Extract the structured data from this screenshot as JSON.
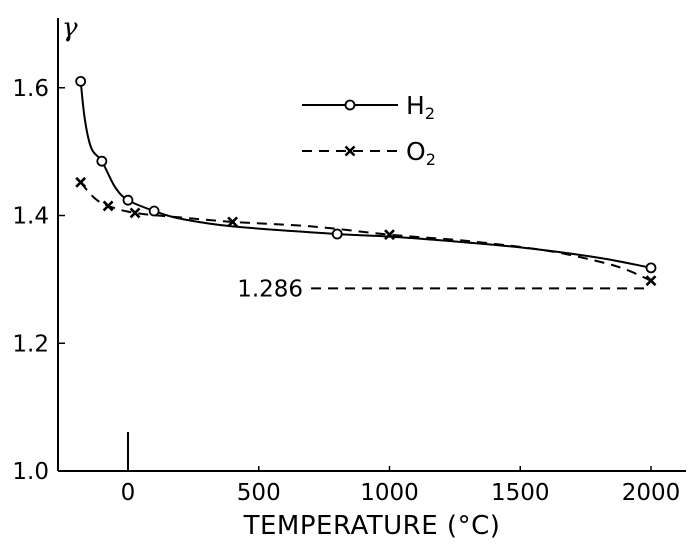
{
  "chart_data": {
    "type": "line",
    "xlabel": "TEMPERATURE (°C)",
    "ylabel": "γ",
    "xlim": [
      -250,
      2050
    ],
    "ylim": [
      1.0,
      1.7
    ],
    "x_ticks": [
      0,
      500,
      1000,
      1500,
      2000
    ],
    "x_tick_labels": [
      "0",
      "500",
      "1000",
      "1500",
      "2000"
    ],
    "y_ticks": [
      1.0,
      1.2,
      1.4,
      1.6
    ],
    "y_tick_labels": [
      "1.0",
      "1.2",
      "1.4",
      "1.6"
    ],
    "grid": false,
    "legend_position": "top-center",
    "series": [
      {
        "name": "H2",
        "legend_text": "H",
        "legend_sub": "2",
        "line_style": "solid",
        "marker": "circle",
        "points": [
          [
            -181,
            1.61
          ],
          [
            -100,
            1.485
          ],
          [
            0,
            1.424
          ],
          [
            100,
            1.407
          ],
          [
            800,
            1.371
          ],
          [
            2000,
            1.318
          ]
        ],
        "curve": [
          [
            -181,
            1.61
          ],
          [
            -165,
            1.55
          ],
          [
            -140,
            1.505
          ],
          [
            -100,
            1.485
          ],
          [
            -50,
            1.445
          ],
          [
            0,
            1.424
          ],
          [
            100,
            1.407
          ],
          [
            200,
            1.395
          ],
          [
            400,
            1.383
          ],
          [
            800,
            1.371
          ],
          [
            1000,
            1.367
          ],
          [
            1200,
            1.361
          ],
          [
            1500,
            1.35
          ],
          [
            1800,
            1.334
          ],
          [
            2000,
            1.318
          ]
        ]
      },
      {
        "name": "O2",
        "legend_text": "O",
        "legend_sub": "2",
        "line_style": "dashed",
        "marker": "x",
        "points": [
          [
            -181,
            1.452
          ],
          [
            -76,
            1.415
          ],
          [
            27,
            1.404
          ],
          [
            400,
            1.39
          ],
          [
            1000,
            1.37
          ],
          [
            2000,
            1.298
          ]
        ],
        "curve": [
          [
            -181,
            1.452
          ],
          [
            -130,
            1.428
          ],
          [
            -76,
            1.415
          ],
          [
            27,
            1.404
          ],
          [
            200,
            1.397
          ],
          [
            400,
            1.39
          ],
          [
            700,
            1.383
          ],
          [
            1000,
            1.37
          ],
          [
            1300,
            1.36
          ],
          [
            1600,
            1.345
          ],
          [
            1800,
            1.328
          ],
          [
            1900,
            1.316
          ],
          [
            2000,
            1.298
          ]
        ]
      }
    ],
    "reference_line": {
      "value": 1.286,
      "label": "1.286",
      "x_from": 700,
      "x_to": 2000,
      "line_style": "dashed"
    }
  }
}
